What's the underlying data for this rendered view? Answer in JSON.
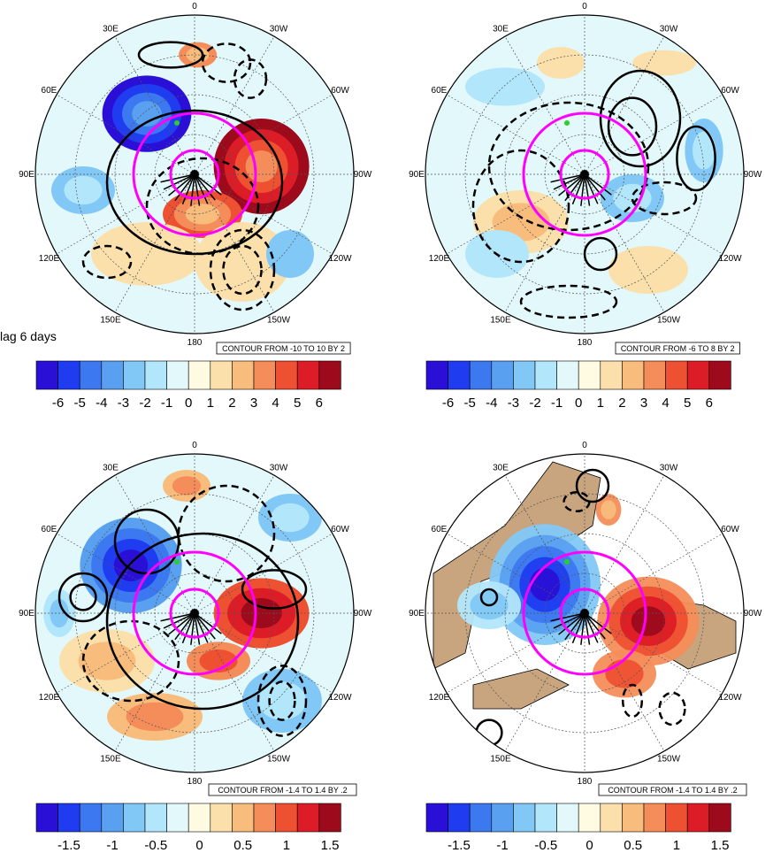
{
  "caption": "lag 6 days",
  "colors": {
    "colorbar": [
      "#2a10d6",
      "#1f3cf0",
      "#3c78f0",
      "#5aa0f0",
      "#82c8f7",
      "#b2e6fb",
      "#e2f8fb",
      "#fffbe2",
      "#fbe0ac",
      "#f8bc7c",
      "#f48d5a",
      "#ee5032",
      "#dc1c26",
      "#9c0a1c"
    ],
    "land": "#c8a57e",
    "magenta": "#ff00ff",
    "grid": "#555555"
  },
  "lon_labels": [
    "0",
    "30W",
    "60W",
    "90W",
    "120W",
    "150W",
    "180",
    "150E",
    "120E",
    "90E",
    "60E",
    "30E"
  ],
  "panels": [
    {
      "contour_text": "CONTOUR FROM -10 TO 10 BY 2",
      "colorbar_labels": [
        "-6",
        "-5",
        "-4",
        "-3",
        "-2",
        "-1",
        "0",
        "1",
        "2",
        "3",
        "4",
        "5",
        "6"
      ]
    },
    {
      "contour_text": "CONTOUR FROM -6 TO 8 BY 2",
      "colorbar_labels": [
        "-6",
        "-5",
        "-4",
        "-3",
        "-2",
        "-1",
        "0",
        "1",
        "2",
        "3",
        "4",
        "5",
        "6"
      ]
    },
    {
      "contour_text": "CONTOUR FROM -1.4 TO 1.4 BY .2",
      "colorbar_labels": [
        "-1.5",
        "-1",
        "-0.5",
        "0",
        "0.5",
        "1",
        "1.5"
      ]
    },
    {
      "contour_text": "CONTOUR FROM -1.4 TO 1.4 BY .2",
      "colorbar_labels": [
        "-1.5",
        "-1",
        "-0.5",
        "0",
        "0.5",
        "1",
        "1.5"
      ]
    }
  ]
}
